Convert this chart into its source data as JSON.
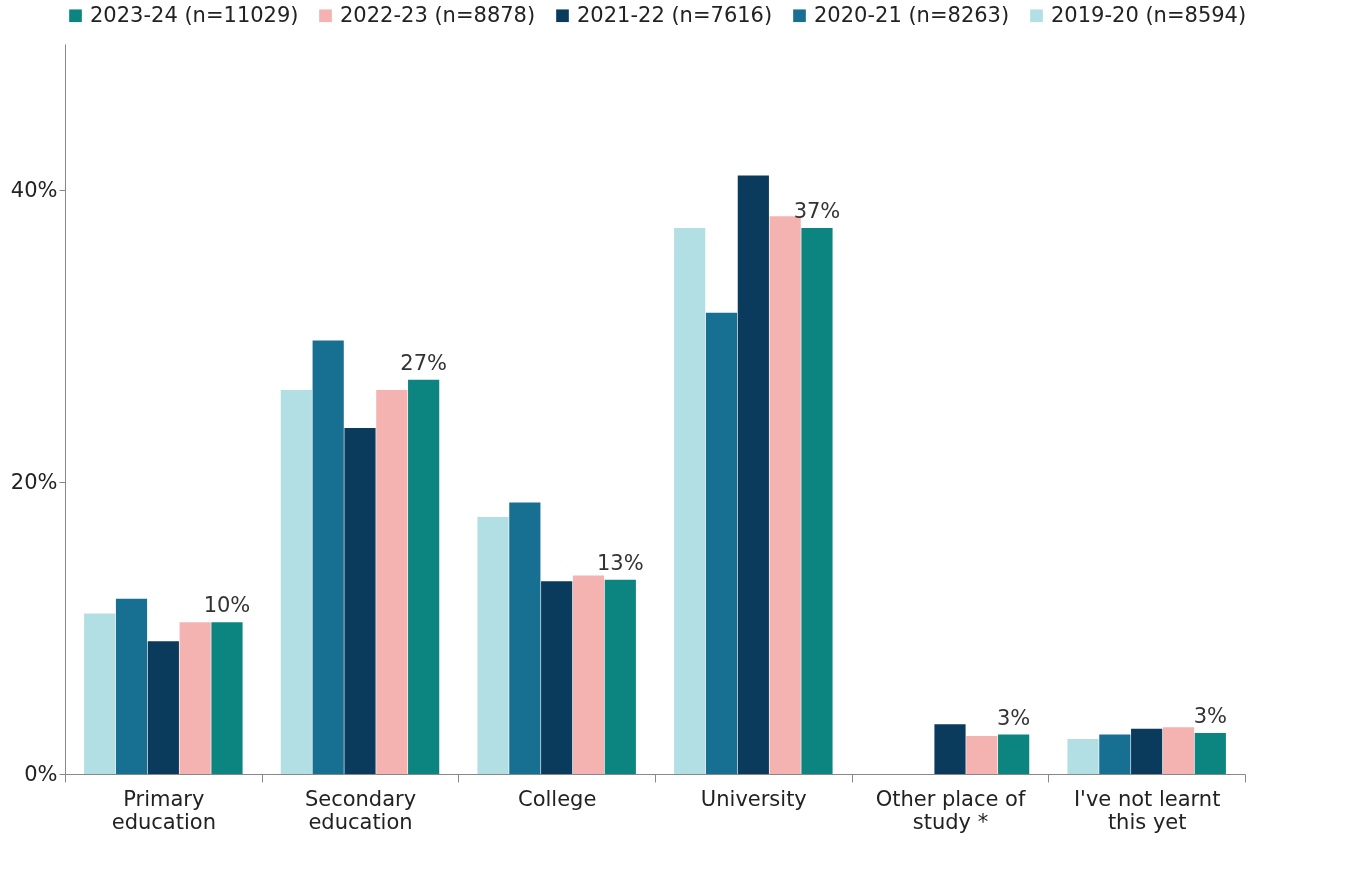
{
  "chart_data": {
    "type": "bar",
    "categories": [
      "Primary education",
      "Secondary education",
      "College",
      "University",
      "Other place of study *",
      "I've not learnt this yet"
    ],
    "series": [
      {
        "name": "2019-20 (n=8594)",
        "color": "#b2dfe3",
        "values": [
          11.0,
          26.3,
          17.6,
          37.4,
          null,
          2.4
        ]
      },
      {
        "name": "2020-21 (n=8263)",
        "color": "#176f91",
        "values": [
          12.0,
          29.7,
          18.6,
          31.6,
          null,
          2.7
        ]
      },
      {
        "name": "2021-22 (n=7616)",
        "color": "#0a3a5c",
        "values": [
          9.1,
          23.7,
          13.2,
          41.0,
          3.4,
          3.1
        ]
      },
      {
        "name": "2022-23 (n=8878)",
        "color": "#f4b2b0",
        "values": [
          10.4,
          26.3,
          13.6,
          38.2,
          2.6,
          3.2
        ]
      },
      {
        "name": "2023-24 (n=11029)",
        "color": "#0c8480",
        "values": [
          10.4,
          27.0,
          13.3,
          37.4,
          2.7,
          2.8
        ],
        "value_labels": [
          "10%",
          "27%",
          "13%",
          "37%",
          "3%",
          "3%"
        ]
      }
    ],
    "ylim": [
      0,
      50
    ],
    "yticks": [
      {
        "value": 0,
        "label": "0%"
      },
      {
        "value": 20,
        "label": "20%"
      },
      {
        "value": 40,
        "label": "40%"
      }
    ],
    "grid": false,
    "legend": "top"
  }
}
